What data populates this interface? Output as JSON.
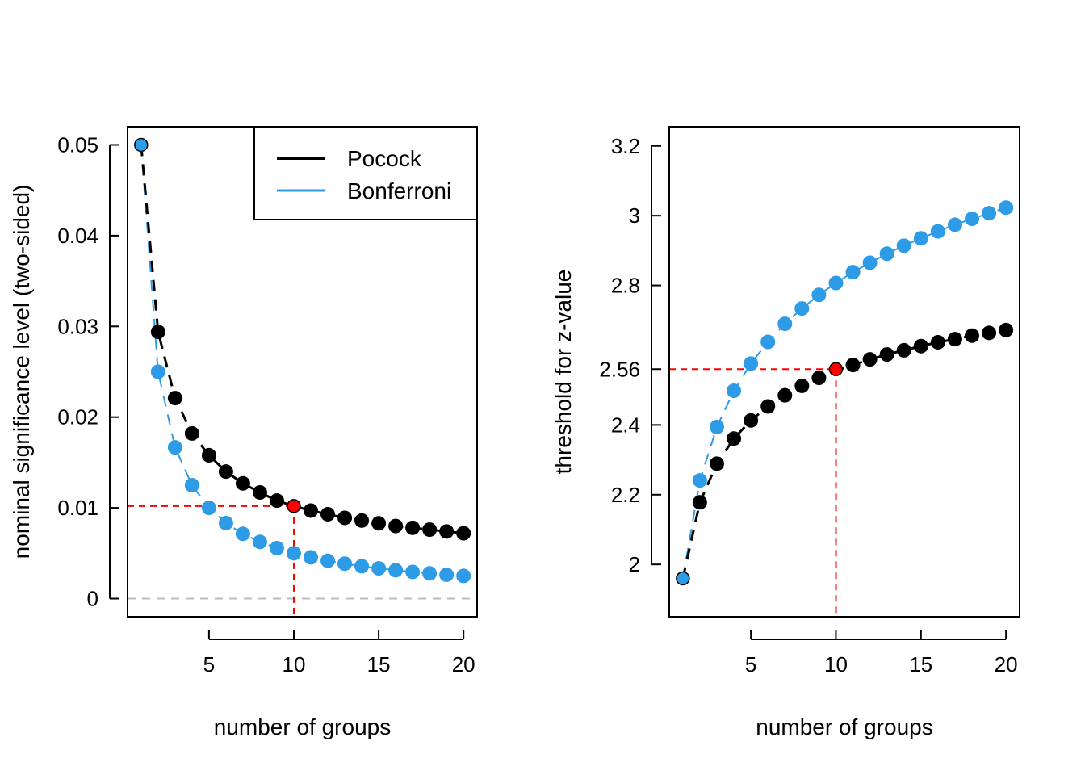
{
  "chart_data": [
    {
      "type": "scatter",
      "xlabel": "number of groups",
      "ylabel": "nominal significance level (two-sided)",
      "xlim": [
        0.2,
        20.8
      ],
      "ylim": [
        -0.002,
        0.052
      ],
      "xticks": [
        5,
        10,
        15,
        20
      ],
      "xtick_labels": [
        "5",
        "10",
        "15",
        "20"
      ],
      "yticks": [
        0,
        0.01,
        0.02,
        0.03,
        0.04,
        0.05
      ],
      "ytick_labels": [
        "0",
        "0.01",
        "0.02",
        "0.03",
        "0.04",
        "0.05"
      ],
      "highlight_tick_label": "0.01",
      "legend": {
        "position": "top-right",
        "entries": [
          "Pocock",
          "Bonferroni"
        ]
      },
      "series": [
        {
          "name": "Pocock",
          "color": "#000000",
          "x": [
            1,
            2,
            3,
            4,
            5,
            6,
            7,
            8,
            9,
            10,
            11,
            12,
            13,
            14,
            15,
            16,
            17,
            18,
            19,
            20
          ],
          "values": [
            0.05,
            0.0294,
            0.0221,
            0.0182,
            0.0158,
            0.014,
            0.0127,
            0.0117,
            0.0108,
            0.0102,
            0.0097,
            0.0093,
            0.0089,
            0.0086,
            0.0083,
            0.008,
            0.0078,
            0.0076,
            0.0074,
            0.0072
          ]
        },
        {
          "name": "Bonferroni",
          "color": "#2E9BE6",
          "x": [
            1,
            2,
            3,
            4,
            5,
            6,
            7,
            8,
            9,
            10,
            11,
            12,
            13,
            14,
            15,
            16,
            17,
            18,
            19,
            20
          ],
          "values": [
            0.05,
            0.025,
            0.01667,
            0.0125,
            0.01,
            0.00833,
            0.00714,
            0.00625,
            0.00556,
            0.005,
            0.00455,
            0.00417,
            0.00385,
            0.00357,
            0.00333,
            0.00313,
            0.00294,
            0.00278,
            0.00263,
            0.0025
          ]
        }
      ],
      "highlight_point": {
        "x": 10,
        "y": 0.0102,
        "color": "#FF0000"
      },
      "reference_line": {
        "y": 0,
        "color": "#BEBEBE"
      }
    },
    {
      "type": "scatter",
      "xlabel": "number of groups",
      "ylabel": "threshold for z-value",
      "xlim": [
        0.2,
        20.8
      ],
      "ylim": [
        1.85,
        3.255
      ],
      "xticks": [
        5,
        10,
        15,
        20
      ],
      "xtick_labels": [
        "5",
        "10",
        "15",
        "20"
      ],
      "yticks": [
        2,
        2.2,
        2.4,
        2.8,
        3,
        3.2
      ],
      "ytick_labels": [
        "2",
        "2.2",
        "2.4",
        "2.8",
        "3",
        "3.2"
      ],
      "highlight_tick": {
        "value": 2.56,
        "label": "2.56",
        "color": "#FF0000"
      },
      "series": [
        {
          "name": "Pocock",
          "color": "#000000",
          "x": [
            1,
            2,
            3,
            4,
            5,
            6,
            7,
            8,
            9,
            10,
            11,
            12,
            13,
            14,
            15,
            16,
            17,
            18,
            19,
            20
          ],
          "values": [
            1.96,
            2.178,
            2.289,
            2.361,
            2.413,
            2.453,
            2.485,
            2.512,
            2.535,
            2.555,
            2.572,
            2.588,
            2.602,
            2.614,
            2.626,
            2.637,
            2.646,
            2.656,
            2.664,
            2.672
          ]
        },
        {
          "name": "Bonferroni",
          "color": "#2E9BE6",
          "x": [
            1,
            2,
            3,
            4,
            5,
            6,
            7,
            8,
            9,
            10,
            11,
            12,
            13,
            14,
            15,
            16,
            17,
            18,
            19,
            20
          ],
          "values": [
            1.96,
            2.241,
            2.394,
            2.498,
            2.576,
            2.638,
            2.69,
            2.734,
            2.773,
            2.807,
            2.838,
            2.865,
            2.891,
            2.914,
            2.935,
            2.955,
            2.974,
            2.991,
            3.007,
            3.023
          ]
        }
      ],
      "highlight_point": {
        "x": 10,
        "y": 2.56,
        "color": "#FF0000"
      }
    }
  ]
}
